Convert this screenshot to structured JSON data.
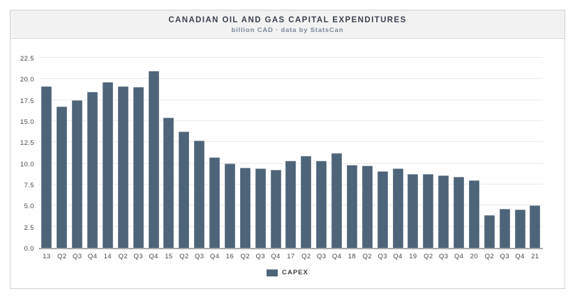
{
  "header": {
    "title": "CANADIAN OIL AND GAS CAPITAL EXPENDITURES",
    "subtitle": "billion CAD · data by StatsCan"
  },
  "chart_data": {
    "type": "bar",
    "title": "CANADIAN OIL AND GAS CAPITAL EXPENDITURES",
    "subtitle": "billion CAD · data by StatsCan",
    "categories": [
      "13",
      "Q2",
      "Q3",
      "Q4",
      "14",
      "Q2",
      "Q3",
      "Q4",
      "15",
      "Q2",
      "Q3",
      "Q4",
      "16",
      "Q2",
      "Q3",
      "Q4",
      "17",
      "Q2",
      "Q3",
      "Q4",
      "18",
      "Q2",
      "Q3",
      "Q4",
      "19",
      "Q2",
      "Q3",
      "Q4",
      "20",
      "Q2",
      "Q3",
      "Q4",
      "21"
    ],
    "series": [
      {
        "name": "CAPEX",
        "values": [
          19.1,
          16.7,
          17.5,
          18.5,
          19.6,
          19.1,
          19.0,
          20.9,
          15.4,
          13.8,
          12.7,
          10.7,
          10.0,
          9.5,
          9.4,
          9.2,
          10.3,
          10.9,
          10.3,
          11.2,
          9.8,
          9.7,
          9.1,
          9.4,
          8.7,
          8.7,
          8.6,
          8.4,
          8.0,
          3.9,
          4.6,
          4.5,
          5.0
        ]
      }
    ],
    "xlabel": "",
    "ylabel": "",
    "ylim": [
      0,
      22.5
    ],
    "ytick_step": 2.5,
    "grid": true,
    "legend_position": "bottom",
    "bar_color": "#4e6478"
  },
  "legend": {
    "items": [
      {
        "label": "CAPEX",
        "color": "#4e6478"
      }
    ]
  }
}
